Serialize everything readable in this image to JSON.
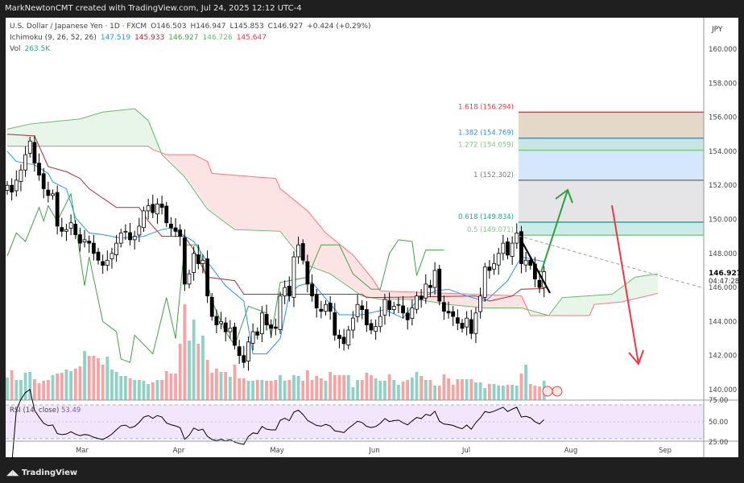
{
  "header": {
    "attribution": "MarkNewtonCMT created with TradingView.com, Jul 24, 2025 12:12 UTC-4"
  },
  "legend": {
    "symbol": "U.S. Dollar / Japanese Yen · 1D · FXCM",
    "open": "O146.503",
    "high": "H146.947",
    "low": "L145.853",
    "close": "C146.927",
    "change": "+0.424 (+0.29%)",
    "ichimoku_label": "Ichimoku (9, 26, 52, 26)",
    "ichimoku_values": [
      "147.519",
      "145.933",
      "146.927",
      "146.726",
      "145.647"
    ],
    "vol_label": "Vol",
    "vol_value": "263.5K",
    "rsi_label": "RSI (14, close)",
    "rsi_value": "53.49"
  },
  "colors": {
    "up": "#ffffff",
    "down": "#000000",
    "vol_up": "#8fd1c6",
    "vol_down": "#f5a3a3",
    "tenkan": "#2196f3",
    "kijun": "#b22833",
    "span_a": "#4caf50",
    "span_b": "#f23645",
    "chikou": "#43a047",
    "rsi_bg": "#f1e6fb",
    "rsi_line": "#000000"
  },
  "price_axis": {
    "currency": "JPY",
    "ticks": [
      "140.000",
      "142.000",
      "144.000",
      "146.000",
      "148.000",
      "150.000",
      "152.000",
      "154.000",
      "156.000",
      "158.000",
      "160.000"
    ],
    "last_price": "146.927",
    "countdown": "04:47:28",
    "rsi_ticks": [
      "75.00",
      "50.00",
      "25.00"
    ]
  },
  "time_axis": {
    "labels": [
      "Mar",
      "Apr",
      "May",
      "Jun",
      "Jul",
      "Aug",
      "Sep"
    ]
  },
  "fib": [
    {
      "level": "0.5 (149.071)",
      "price": 149.071,
      "color": "#81c784",
      "fill": "#cdebe6"
    },
    {
      "level": "0.618 (149.834)",
      "price": 149.834,
      "color": "#26a69a",
      "fill": "#e5e5e7"
    },
    {
      "level": "1 (152.302)",
      "price": 152.302,
      "color": "#787b86",
      "fill": "#d4e7fb"
    },
    {
      "level": "1.272 (154.059)",
      "price": 154.059,
      "color": "#81c784",
      "fill": "#c7e5e2"
    },
    {
      "level": "1.382 (154.769)",
      "price": 154.769,
      "color": "#2196f3",
      "fill": "#e4d8c8"
    },
    {
      "level": "1.618 (156.294)",
      "price": 156.294,
      "color": "#f23645",
      "fill": null
    }
  ],
  "chart_data": {
    "type": "candlestick",
    "close": [
      152.0,
      151.6,
      152.3,
      152.9,
      153.8,
      154.6,
      153.3,
      152.6,
      151.8,
      151.4,
      151.5,
      149.6,
      149.3,
      149.4,
      149.8,
      149.1,
      148.6,
      148.8,
      148.6,
      148.0,
      147.6,
      147.3,
      147.6,
      148.0,
      148.6,
      149.2,
      149.3,
      148.8,
      149.0,
      149.6,
      150.5,
      150.8,
      150.4,
      150.9,
      150.7,
      149.8,
      149.5,
      149.3,
      149.0,
      146.2,
      146.8,
      148.0,
      147.4,
      147.6,
      145.5,
      144.3,
      143.8,
      144.0,
      143.4,
      143.6,
      142.6,
      142.0,
      141.6,
      142.8,
      143.4,
      143.2,
      144.5,
      143.8,
      143.6,
      143.6,
      145.5,
      146.0,
      145.5,
      147.8,
      148.5,
      147.6,
      146.2,
      145.5,
      144.8,
      144.6,
      145.0,
      144.6,
      143.2,
      143.0,
      142.7,
      143.5,
      144.2,
      145.0,
      144.7,
      143.8,
      143.5,
      143.7,
      144.3,
      145.3,
      144.7,
      144.9,
      145.0,
      144.5,
      144.1,
      144.8,
      145.5,
      145.3,
      146.2,
      146.0,
      147.0,
      145.2,
      144.6,
      144.5,
      144.3,
      143.9,
      143.6,
      144.2,
      143.3,
      144.5,
      145.5,
      147.2,
      147.0,
      147.4,
      148.0,
      148.6,
      147.9,
      148.6,
      149.2,
      147.4,
      147.6,
      147.3,
      146.5,
      146.0,
      146.927
    ],
    "volume_k": [
      370,
      488,
      330,
      330,
      449,
      462,
      343,
      277,
      317,
      330,
      409,
      436,
      449,
      502,
      475,
      515,
      554,
      805,
      726,
      726,
      686,
      581,
      713,
      502,
      462,
      396,
      396,
      356,
      330,
      330,
      317,
      264,
      290,
      330,
      330,
      475,
      436,
      436,
      924,
      1571,
      977,
      1320,
      924,
      1056,
      660,
      449,
      515,
      462,
      462,
      383,
      581,
      356,
      356,
      317,
      317,
      330,
      330,
      317,
      317,
      330,
      409,
      317,
      330,
      409,
      396,
      317,
      488,
      330,
      396,
      356,
      317,
      462,
      409,
      409,
      409,
      409,
      211,
      330,
      330,
      449,
      409,
      356,
      317,
      317,
      422,
      330,
      251,
      304,
      330,
      370,
      462,
      396,
      330,
      330,
      238,
      238,
      422,
      356,
      251,
      343,
      343,
      343,
      343,
      290,
      290,
      198,
      264,
      264,
      238,
      238,
      251,
      251,
      238,
      436,
      581,
      264,
      238,
      224,
      317,
      263.5
    ],
    "tenkan": [
      [
        0,
        154.0
      ],
      [
        2,
        153.4
      ],
      [
        6,
        153.2
      ],
      [
        9,
        152.7
      ],
      [
        10,
        152.2
      ],
      [
        13,
        151.8
      ],
      [
        15,
        150.1
      ],
      [
        18,
        149.2
      ],
      [
        21,
        149.1
      ],
      [
        25,
        148.9
      ],
      [
        30,
        149.0
      ],
      [
        34,
        149.4
      ],
      [
        36,
        149.5
      ],
      [
        41,
        148.7
      ],
      [
        44,
        147.5
      ],
      [
        48,
        146.1
      ],
      [
        52,
        145.2
      ],
      [
        54,
        142.1
      ],
      [
        57,
        142.1
      ],
      [
        60,
        143.0
      ],
      [
        62,
        145.6
      ],
      [
        64,
        146.1
      ],
      [
        67,
        146.3
      ],
      [
        73,
        144.4
      ],
      [
        78,
        144.4
      ],
      [
        83,
        144.7
      ],
      [
        87,
        144.2
      ],
      [
        90,
        145.2
      ],
      [
        94,
        145.8
      ],
      [
        97,
        145.9
      ],
      [
        101,
        145.5
      ],
      [
        105,
        145.2
      ],
      [
        106,
        145.4
      ],
      [
        110,
        146.4
      ],
      [
        113,
        147.8
      ],
      [
        118,
        147.519
      ]
    ],
    "kijun": [
      [
        0,
        155.0
      ],
      [
        6,
        154.9
      ],
      [
        9,
        153.1
      ],
      [
        13,
        152.8
      ],
      [
        16,
        152.4
      ],
      [
        18,
        151.8
      ],
      [
        24,
        150.7
      ],
      [
        29,
        150.7
      ],
      [
        31,
        149.9
      ],
      [
        34,
        149.0
      ],
      [
        39,
        149.0
      ],
      [
        41,
        148.2
      ],
      [
        44,
        146.6
      ],
      [
        50,
        146.4
      ],
      [
        52,
        145.6
      ],
      [
        59,
        145.6
      ],
      [
        78,
        145.6
      ],
      [
        79,
        145.4
      ],
      [
        103,
        145.5
      ],
      [
        106,
        145.2
      ],
      [
        111,
        145.5
      ],
      [
        113,
        145.9
      ],
      [
        118,
        145.933
      ]
    ],
    "span_a": [
      [
        0,
        155.3
      ],
      [
        5,
        155.6
      ],
      [
        16,
        155.9
      ],
      [
        21,
        156.3
      ],
      [
        28,
        156.5
      ],
      [
        31,
        155.8
      ],
      [
        34,
        153.8
      ],
      [
        39,
        152.5
      ],
      [
        44,
        150.6
      ],
      [
        50,
        149.4
      ],
      [
        60,
        149.3
      ],
      [
        66,
        147.3
      ],
      [
        71,
        146.8
      ],
      [
        78,
        145.5
      ],
      [
        82,
        145.3
      ],
      [
        90,
        145.3
      ],
      [
        97,
        145.0
      ],
      [
        105,
        144.8
      ],
      [
        113,
        144.8
      ],
      [
        119,
        144.35
      ],
      [
        122,
        145.4
      ],
      [
        133,
        145.6
      ],
      [
        138,
        146.6
      ],
      [
        143,
        146.8
      ]
    ],
    "span_b": [
      [
        0,
        154.3
      ],
      [
        31,
        154.3
      ],
      [
        32,
        154.1
      ],
      [
        35,
        153.8
      ],
      [
        41,
        153.8
      ],
      [
        44,
        153.4
      ],
      [
        45,
        152.7
      ],
      [
        59,
        152.4
      ],
      [
        60,
        151.8
      ],
      [
        66,
        150.5
      ],
      [
        70,
        149.2
      ],
      [
        76,
        147.9
      ],
      [
        80,
        146.6
      ],
      [
        82,
        145.8
      ],
      [
        113,
        145.5
      ],
      [
        115,
        144.35
      ],
      [
        128,
        144.35
      ],
      [
        129,
        145.0
      ],
      [
        135,
        145.15
      ],
      [
        143,
        145.65
      ]
    ],
    "chikou": [
      [
        0,
        147.85
      ],
      [
        2,
        149.2
      ],
      [
        4,
        148.7
      ],
      [
        7,
        150.7
      ],
      [
        8,
        149.9
      ],
      [
        9,
        150.8
      ],
      [
        11,
        149.9
      ],
      [
        14,
        151.5
      ],
      [
        17,
        146.1
      ],
      [
        18,
        147.8
      ],
      [
        21,
        144.0
      ],
      [
        24,
        143.4
      ],
      [
        25,
        141.8
      ],
      [
        27,
        141.6
      ],
      [
        28,
        143.2
      ],
      [
        32,
        142.1
      ],
      [
        35,
        145.4
      ],
      [
        37,
        143.0
      ],
      [
        39,
        148.5
      ],
      [
        42,
        148.5
      ],
      [
        45,
        145.2
      ],
      [
        48,
        143.4
      ],
      [
        50,
        142.6
      ],
      [
        53,
        144.9
      ],
      [
        57,
        144.5
      ],
      [
        58,
        143.1
      ],
      [
        60,
        146.3
      ],
      [
        66,
        146.6
      ],
      [
        69,
        148.5
      ],
      [
        73,
        148.5
      ],
      [
        76,
        146.8
      ],
      [
        80,
        145.9
      ],
      [
        82,
        145.9
      ],
      [
        84,
        148.0
      ],
      [
        86,
        148.8
      ],
      [
        89,
        148.7
      ],
      [
        90,
        146.7
      ],
      [
        92,
        148.2
      ],
      [
        96,
        148.2
      ]
    ],
    "ylim": [
      140,
      160
    ]
  }
}
